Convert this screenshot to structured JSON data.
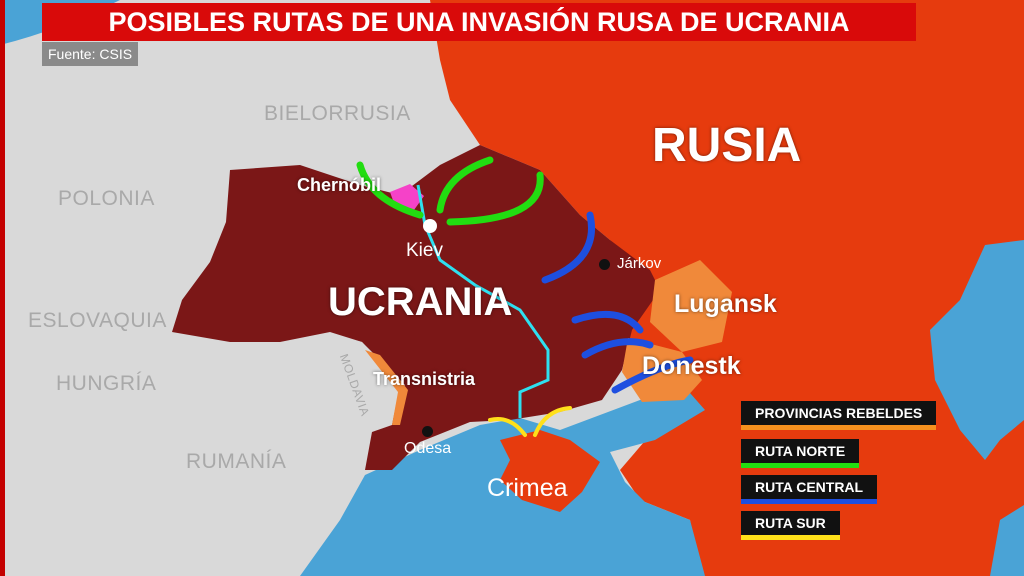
{
  "title": "POSIBLES RUTAS DE UNA INVASIÓN RUSA DE UCRANIA",
  "source": "Fuente: CSIS",
  "countries": {
    "belarus": "BIELORRUSIA",
    "poland": "POLONIA",
    "slovakia": "ESLOVAQUIA",
    "hungary": "HUNGRÍA",
    "romania": "RUMANÍA",
    "moldova": "MOLDAVIA",
    "russia": "RUSIA",
    "ukraine": "UCRANIA"
  },
  "places": {
    "chernobyl": "Chernóbil",
    "kiev": "Kiev",
    "kharkiv": "Járkov",
    "lugansk": "Lugansk",
    "donetsk": "Donestk",
    "transnistria": "Transnistria",
    "odesa": "Odesa",
    "crimea": "Crimea"
  },
  "legend": [
    {
      "label": "PROVINCIAS REBELDES",
      "color": "#f5901e"
    },
    {
      "label": "RUTA NORTE",
      "color": "#22dd11"
    },
    {
      "label": "RUTA CENTRAL",
      "color": "#1e4fe0"
    },
    {
      "label": "RUTA SUR",
      "color": "#ffe01a"
    }
  ],
  "colors": {
    "russia": "#e63b0e",
    "ukraine": "#7b1717",
    "rebel": "#f0893a",
    "sea": "#4aa3d6",
    "land": "#d9d9d9"
  }
}
